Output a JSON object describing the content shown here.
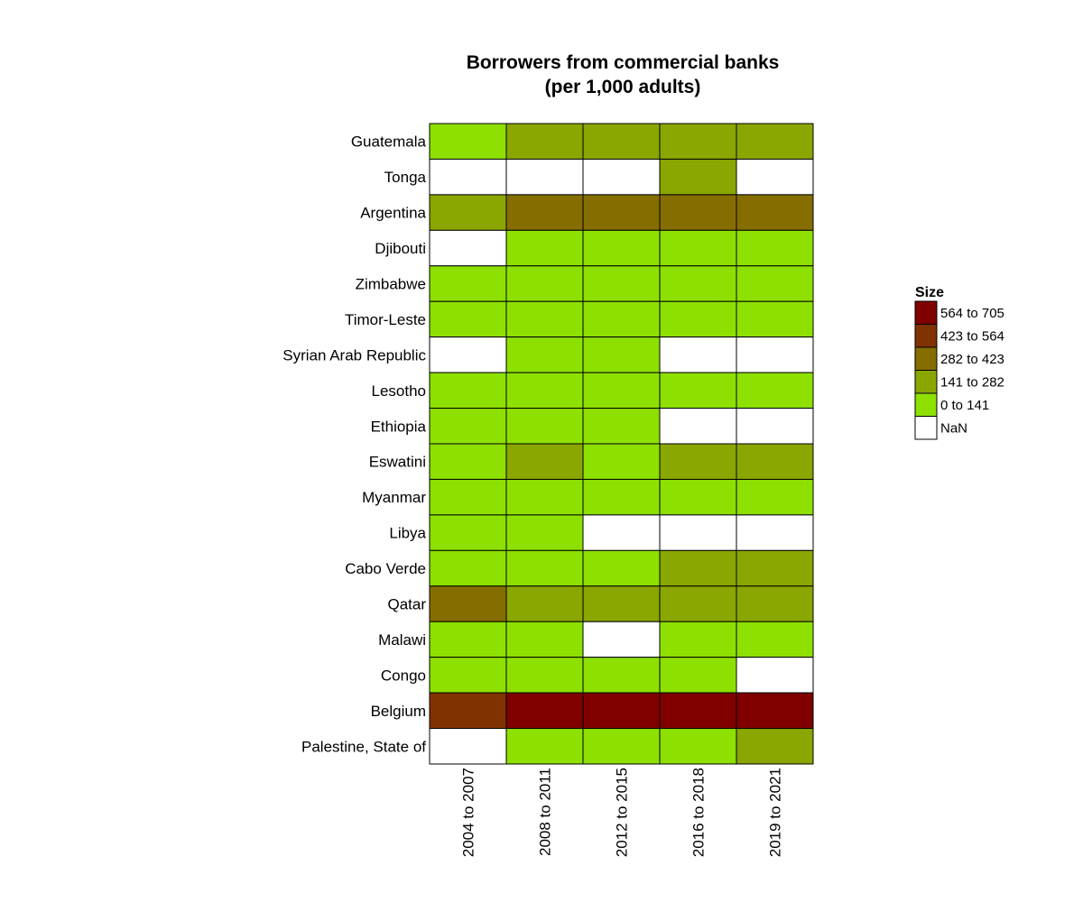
{
  "chart_data": {
    "type": "heatmap",
    "title": "Borrowers from commercial banks",
    "subtitle": "(per 1,000 adults)",
    "x_categories": [
      "2004 to 2007",
      "2008 to 2011",
      "2012 to 2015",
      "2016 to 2018",
      "2019 to 2021"
    ],
    "y_categories": [
      "Guatemala",
      "Tonga",
      "Argentina",
      "Djibouti",
      "Zimbabwe",
      "Timor-Leste",
      "Syrian Arab Republic",
      "Lesotho",
      "Ethiopia",
      "Eswatini",
      "Myanmar",
      "Libya",
      "Cabo Verde",
      "Qatar",
      "Malawi",
      "Congo",
      "Belgium",
      "Palestine, State of"
    ],
    "legend": {
      "title": "Size",
      "position": "right",
      "bins": [
        {
          "label": "564  to  705",
          "min": 564,
          "max": 705,
          "color": "#800000"
        },
        {
          "label": "423  to  564",
          "min": 423,
          "max": 564,
          "color": "#803300"
        },
        {
          "label": "282  to  423",
          "min": 282,
          "max": 423,
          "color": "#866d00"
        },
        {
          "label": "141  to  282",
          "min": 141,
          "max": 282,
          "color": "#8aa600"
        },
        {
          "label": "0  to  141",
          "min": 0,
          "max": 141,
          "color": "#8ee000"
        },
        {
          "label": "NaN",
          "min": null,
          "max": null,
          "color": "#ffffff"
        }
      ]
    },
    "bin_matrix": [
      [
        4,
        3,
        3,
        3,
        3
      ],
      [
        5,
        5,
        5,
        3,
        5
      ],
      [
        3,
        2,
        2,
        2,
        2
      ],
      [
        5,
        4,
        4,
        4,
        4
      ],
      [
        4,
        4,
        4,
        4,
        4
      ],
      [
        4,
        4,
        4,
        4,
        4
      ],
      [
        5,
        4,
        4,
        5,
        5
      ],
      [
        4,
        4,
        4,
        4,
        4
      ],
      [
        4,
        4,
        4,
        5,
        5
      ],
      [
        4,
        3,
        4,
        3,
        3
      ],
      [
        4,
        4,
        4,
        4,
        4
      ],
      [
        4,
        4,
        5,
        5,
        5
      ],
      [
        4,
        4,
        4,
        3,
        3
      ],
      [
        2,
        3,
        3,
        3,
        3
      ],
      [
        4,
        4,
        5,
        4,
        4
      ],
      [
        4,
        4,
        4,
        4,
        5
      ],
      [
        1,
        0,
        0,
        0,
        0
      ],
      [
        5,
        4,
        4,
        4,
        3
      ]
    ]
  }
}
